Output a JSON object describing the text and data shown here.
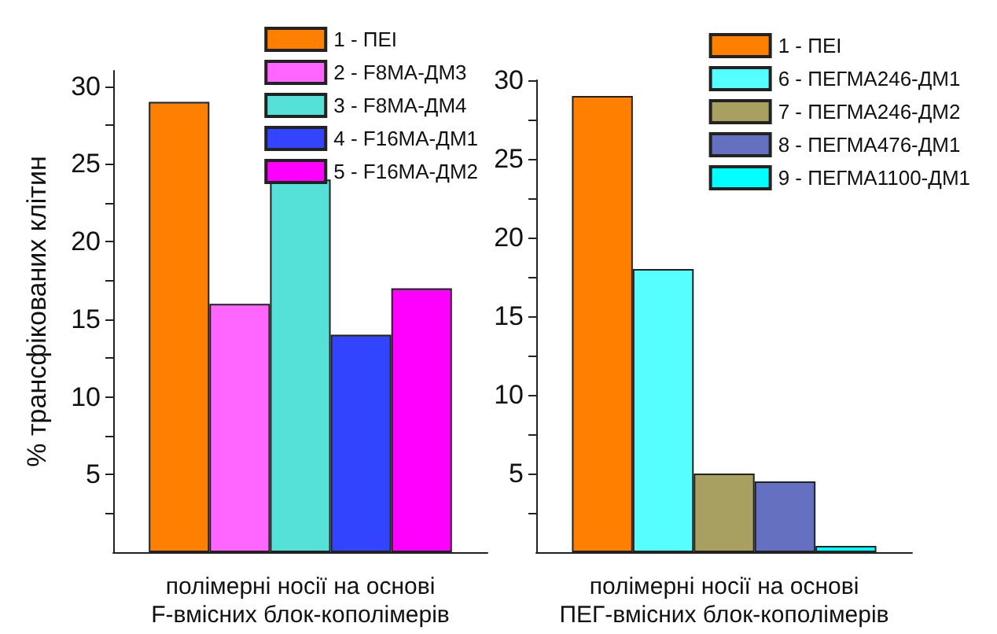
{
  "chart_data": [
    {
      "type": "bar",
      "ylabel": "% трансфікованих клітин",
      "xlabel": "полімерні носії на основі\nF-вмісних блок-кополімерів",
      "categories": [
        null
      ],
      "series": [
        {
          "name": "1 - ПЕІ",
          "color": "#ff8000",
          "values": [
            29
          ]
        },
        {
          "name": "2 - F8MA-ДМ3",
          "color": "#ff66ff",
          "values": [
            16
          ]
        },
        {
          "name": "3 - F8MA-ДМ4",
          "color": "#55e0d8",
          "values": [
            24
          ]
        },
        {
          "name": "4 - F16MA-ДМ1",
          "color": "#3344ff",
          "values": [
            14
          ]
        },
        {
          "name": "5 - F16MA-ДМ2",
          "color": "#ff00ff",
          "values": [
            17
          ]
        }
      ],
      "ylim": [
        0,
        31
      ],
      "yticks": [
        {
          "value": 2.5,
          "label": null
        },
        5,
        {
          "value": 7.5,
          "label": null
        },
        10,
        {
          "value": 12.5,
          "label": null
        },
        15,
        {
          "value": 17.5,
          "label": null
        },
        20,
        {
          "value": 22.5,
          "label": null
        },
        25,
        {
          "value": 27.5,
          "label": null
        },
        30
      ],
      "legend": "top right"
    },
    {
      "type": "bar",
      "xlabel": "полімерні носії на основі\nПЕГ-вмісних блок-кополімерів",
      "categories": [
        null
      ],
      "series": [
        {
          "name": "1 - ПЕІ",
          "color": "#ff8000",
          "values": [
            29
          ]
        },
        {
          "name": "6 - ПЕГМА246-ДМ1",
          "color": "#55ffff",
          "values": [
            18
          ]
        },
        {
          "name": "7 - ПЕГМА246-ДМ2",
          "color": "#a8a060",
          "values": [
            5
          ]
        },
        {
          "name": "8 - ПЕГМА476-ДМ1",
          "color": "#6670c0",
          "values": [
            4.5
          ]
        },
        {
          "name": "9 - ПЕГМА1100-ДМ1",
          "color": "#00ffff",
          "values": [
            0.4
          ]
        }
      ],
      "ylim": [
        0,
        30
      ],
      "yticks": [
        {
          "value": 2.5,
          "label": null
        },
        5,
        {
          "value": 7.5,
          "label": null
        },
        10,
        {
          "value": 12.5,
          "label": null
        },
        15,
        {
          "value": 17.5,
          "label": null
        },
        20,
        {
          "value": 22.5,
          "label": null
        },
        25,
        {
          "value": 27.5,
          "label": null
        },
        30
      ],
      "legend": "top right"
    }
  ]
}
